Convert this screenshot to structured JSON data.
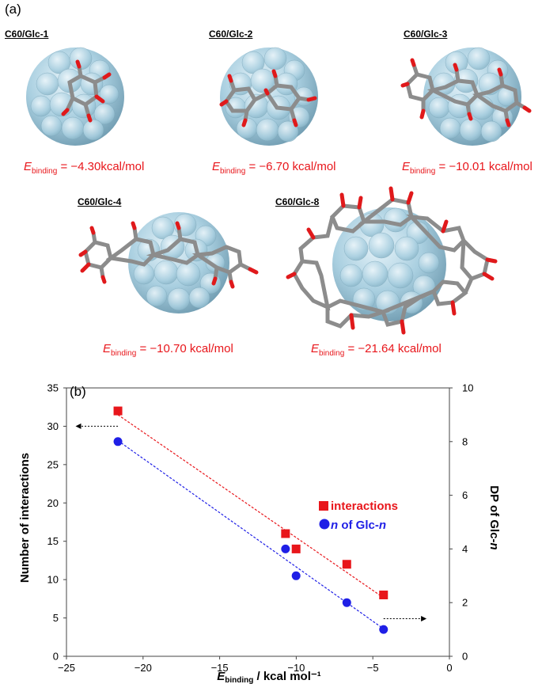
{
  "panel_a": {
    "label": "(a)",
    "structures": [
      {
        "title": "C60/Glc-1",
        "energy_symbol": "E",
        "energy_sub": "binding",
        "energy_text": " = −4.30kcal/mol"
      },
      {
        "title": "C60/Glc-2",
        "energy_symbol": "E",
        "energy_sub": "binding",
        "energy_text": " = −6.70 kcal/mol"
      },
      {
        "title": "C60/Glc-3",
        "energy_symbol": "E",
        "energy_sub": "binding",
        "energy_text": " = −10.01 kcal/mol"
      },
      {
        "title": "C60/Glc-4",
        "energy_symbol": "E",
        "energy_sub": "binding",
        "energy_text": " = −10.70 kcal/mol"
      },
      {
        "title": "C60/Glc-8",
        "energy_symbol": "E",
        "energy_sub": "binding",
        "energy_text": " = −21.64 kcal/mol"
      }
    ]
  },
  "colors": {
    "fullerene": "#a9cfe0",
    "carbon": "#8c8c8c",
    "oxygen": "#e0191b",
    "red": "#e8161b",
    "blue": "#1f1fe6"
  },
  "chart_data": {
    "type": "scatter",
    "panel_label": "(b)",
    "x": {
      "label_symbol": "E",
      "label_sub": "binding",
      "label_rest": " / kcal mol⁻¹",
      "range": [
        -25,
        0
      ],
      "ticks": [
        -25,
        -20,
        -15,
        -10,
        -5,
        0
      ]
    },
    "y_left": {
      "label": "Number of interactions",
      "range": [
        0,
        35
      ],
      "ticks": [
        0,
        5,
        10,
        15,
        20,
        25,
        30,
        35
      ]
    },
    "y_right": {
      "label_rest": "DP of Glc-",
      "label_italic": "n",
      "range": [
        0,
        10
      ],
      "ticks": [
        0,
        2,
        4,
        6,
        8,
        10
      ]
    },
    "series": [
      {
        "name": "interactions",
        "marker": "square",
        "color": "#e8161b",
        "axis": "left",
        "points": [
          [
            -4.3,
            8
          ],
          [
            -6.7,
            12
          ],
          [
            -10.01,
            14
          ],
          [
            -10.7,
            16
          ],
          [
            -21.64,
            32
          ]
        ]
      },
      {
        "name_italic": "n",
        "name_rest": " of Glc-",
        "name_italic2": "n",
        "marker": "circle",
        "color": "#1f1fe6",
        "axis": "right",
        "points": [
          [
            -4.3,
            1
          ],
          [
            -6.7,
            2
          ],
          [
            -10.01,
            3
          ],
          [
            -10.7,
            4
          ],
          [
            -21.64,
            8
          ]
        ]
      }
    ],
    "legend_position": "top-right"
  }
}
